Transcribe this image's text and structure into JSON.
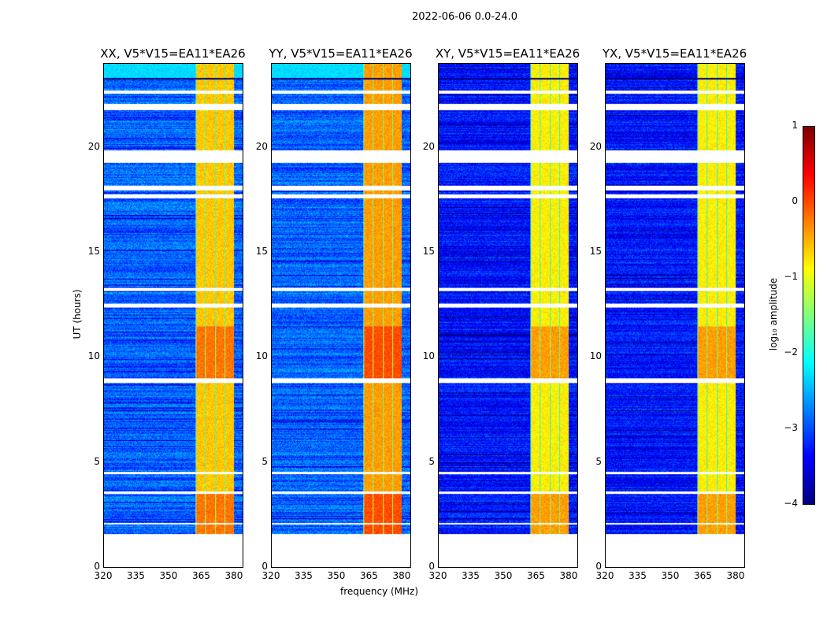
{
  "chart_data": {
    "type": "heatmap",
    "suptitle": "2022-06-06 0.0-24.0",
    "xlabel": "frequency (MHz)",
    "ylabel": "UT (hours)",
    "xlim": [
      320,
      384
    ],
    "ylim": [
      0,
      24
    ],
    "xticks": [
      "320",
      "335",
      "350",
      "365",
      "380"
    ],
    "xtick_values": [
      320,
      335,
      350,
      365,
      380
    ],
    "yticks": [
      "0",
      "5",
      "10",
      "15",
      "20"
    ],
    "ytick_values": [
      0,
      5,
      10,
      15,
      20
    ],
    "data_start_hour": 1.6,
    "flagged_gaps_hours": [
      [
        2.05,
        2.12
      ],
      [
        3.5,
        3.62
      ],
      [
        4.45,
        4.55
      ],
      [
        8.8,
        9.0
      ],
      [
        12.4,
        12.6
      ],
      [
        13.2,
        13.32
      ],
      [
        17.6,
        17.8
      ],
      [
        18.0,
        18.2
      ],
      [
        19.3,
        19.9
      ],
      [
        21.8,
        22.1
      ],
      [
        22.6,
        22.75
      ]
    ],
    "rfi_band_mhz": [
      362,
      380
    ],
    "panels": [
      {
        "title": "XX, V5*V15=EA11*EA26",
        "background_log_amp": -2.9,
        "band_log_amp": -0.6
      },
      {
        "title": "YY, V5*V15=EA11*EA26",
        "background_log_amp": -2.9,
        "band_log_amp": -0.4
      },
      {
        "title": "XY, V5*V15=EA11*EA26",
        "background_log_amp": -3.3,
        "band_log_amp": -0.8
      },
      {
        "title": "YX, V5*V15=EA11*EA26",
        "background_log_amp": -3.3,
        "band_log_amp": -0.8
      }
    ],
    "colorbar": {
      "label": "log₁₀ amplitude",
      "range": [
        -4,
        1
      ],
      "ticks": [
        "1",
        "0",
        "−1",
        "−2",
        "−3",
        "−4"
      ],
      "tick_values": [
        1,
        0,
        -1,
        -2,
        -3,
        -4
      ],
      "colormap": "jet"
    }
  }
}
